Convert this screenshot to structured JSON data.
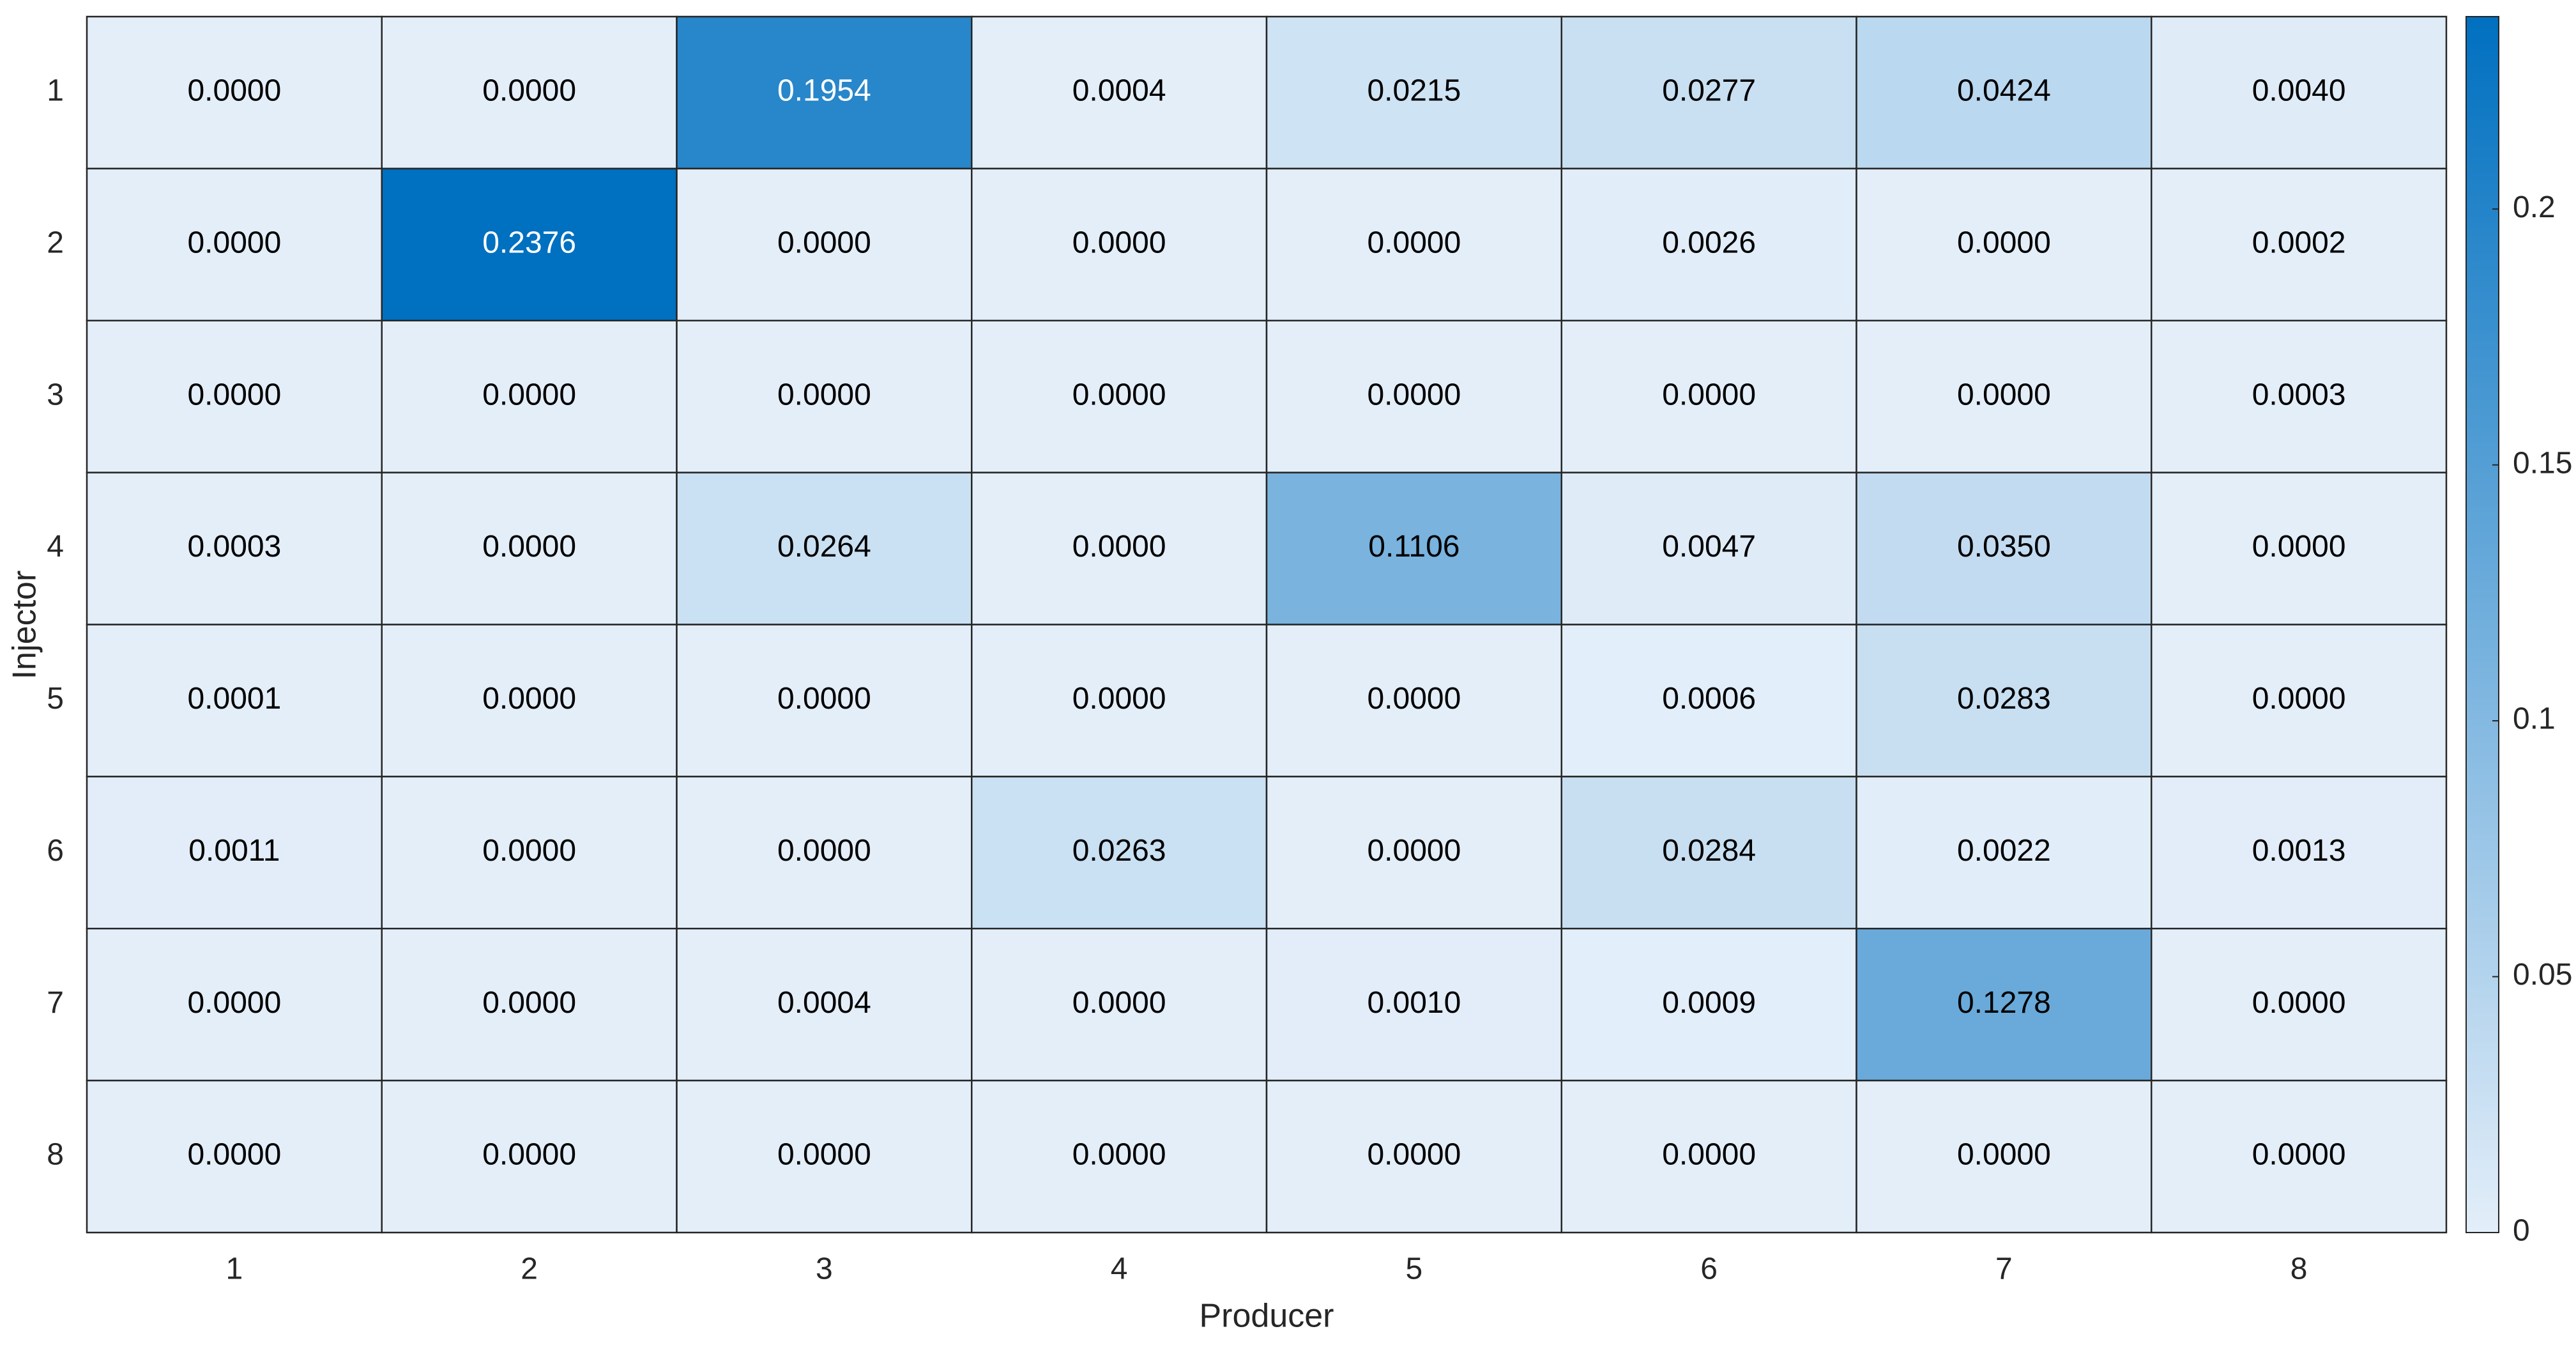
{
  "chart_data": {
    "type": "heatmap",
    "xlabel": "Producer",
    "ylabel": "Injector",
    "x_categories": [
      "1",
      "2",
      "3",
      "4",
      "5",
      "6",
      "7",
      "8"
    ],
    "y_categories": [
      "1",
      "2",
      "3",
      "4",
      "5",
      "6",
      "7",
      "8"
    ],
    "values": [
      [
        0,
        0,
        0.1954,
        0.0004,
        0.0215,
        0.0277,
        0.0424,
        0.004
      ],
      [
        0,
        0.2376,
        0,
        0,
        0,
        0.0026,
        0,
        0.0002
      ],
      [
        0,
        0,
        0,
        0,
        0,
        0,
        0,
        0.0003
      ],
      [
        0.0003,
        0,
        0.0264,
        0,
        0.1106,
        0.0047,
        0.035,
        0
      ],
      [
        0.0001,
        0,
        0,
        0,
        0,
        0.0006,
        0.0283,
        0
      ],
      [
        0.0011,
        0,
        0,
        0.0263,
        0,
        0.0284,
        0.0022,
        0.0013
      ],
      [
        0,
        0,
        0.0004,
        0,
        0.001,
        0.0009,
        0.1278,
        0
      ],
      [
        0,
        0,
        0,
        0,
        0,
        0,
        0,
        0
      ]
    ],
    "value_labels": [
      [
        "0.0000",
        "0.0000",
        "0.1954",
        "0.0004",
        "0.0215",
        "0.0277",
        "0.0424",
        "0.0040"
      ],
      [
        "0.0000",
        "0.2376",
        "0.0000",
        "0.0000",
        "0.0000",
        "0.0026",
        "0.0000",
        "0.0002"
      ],
      [
        "0.0000",
        "0.0000",
        "0.0000",
        "0.0000",
        "0.0000",
        "0.0000",
        "0.0000",
        "0.0003"
      ],
      [
        "0.0003",
        "0.0000",
        "0.0264",
        "0.0000",
        "0.1106",
        "0.0047",
        "0.0350",
        "0.0000"
      ],
      [
        "0.0001",
        "0.0000",
        "0.0000",
        "0.0000",
        "0.0000",
        "0.0006",
        "0.0283",
        "0.0000"
      ],
      [
        "0.0011",
        "0.0000",
        "0.0000",
        "0.0263",
        "0.0000",
        "0.0284",
        "0.0022",
        "0.0013"
      ],
      [
        "0.0000",
        "0.0000",
        "0.0004",
        "0.0000",
        "0.0010",
        "0.0009",
        "0.1278",
        "0.0000"
      ],
      [
        "0.0000",
        "0.0000",
        "0.0000",
        "0.0000",
        "0.0000",
        "0.0000",
        "0.0000",
        "0.0000"
      ]
    ],
    "colormap": [
      "#e3eef9",
      "#0070c0"
    ],
    "clim": [
      0,
      0.2376
    ],
    "cticks": [
      0,
      0.05,
      0.1,
      0.15,
      0.2
    ]
  }
}
